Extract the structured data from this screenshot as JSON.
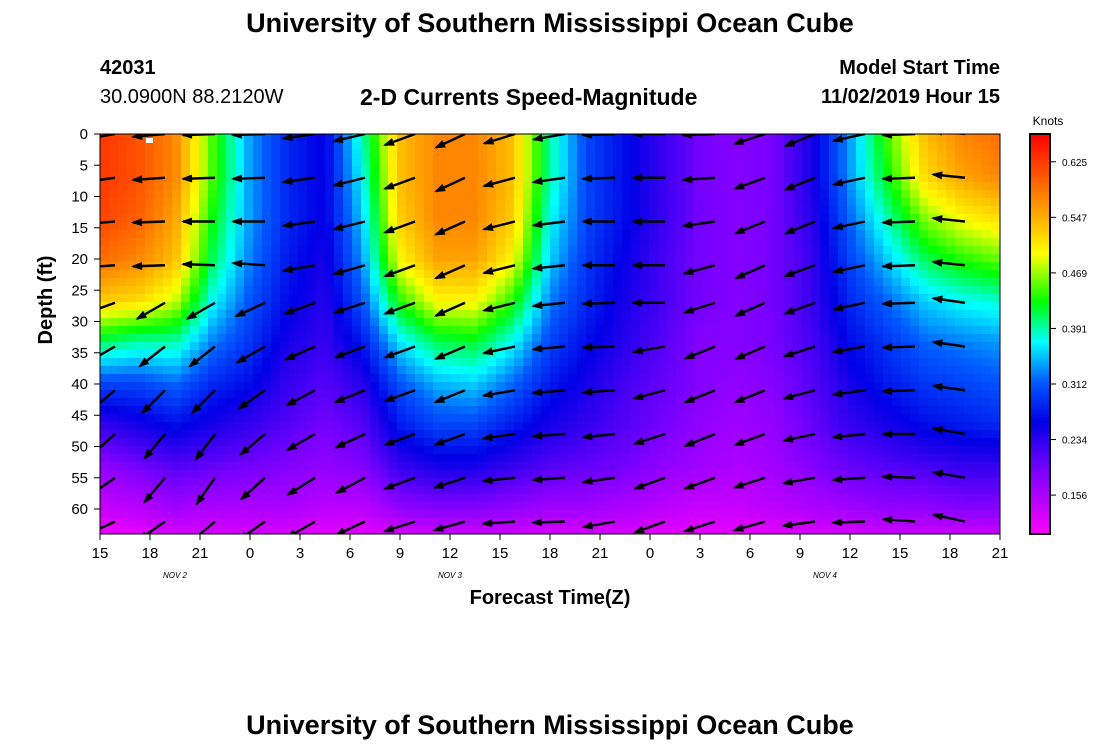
{
  "header": {
    "title": "University of Southern Mississippi Ocean Cube",
    "station_id": "42031",
    "station_coords": "30.0900N 88.2120W",
    "chart_title": "2-D Currents Speed-Magnitude",
    "model_label": "Model Start Time",
    "model_time": "11/02/2019 Hour 15"
  },
  "footer": {
    "title": "University of Southern Mississippi Ocean Cube"
  },
  "chart_data": {
    "type": "heatmap",
    "title": "2-D Currents Speed-Magnitude",
    "xlabel": "Forecast Time(Z)",
    "ylabel": "Depth (ft)",
    "x_tick_labels": [
      "15",
      "18",
      "21",
      "0",
      "3",
      "6",
      "9",
      "12",
      "15",
      "18",
      "21",
      "0",
      "3",
      "6",
      "9",
      "12",
      "15",
      "18",
      "21"
    ],
    "date_labels": [
      {
        "label": "NOV 2",
        "tick_index": 1.5
      },
      {
        "label": "NOV 3",
        "tick_index": 7
      },
      {
        "label": "NOV 4",
        "tick_index": 14.5
      }
    ],
    "y_ticks": [
      0,
      5,
      10,
      15,
      20,
      25,
      30,
      35,
      40,
      45,
      50,
      55,
      60
    ],
    "ylim": [
      0,
      64
    ],
    "colorbar": {
      "label": "Knots",
      "ticks": [
        "0.625",
        "0.547",
        "0.469",
        "0.391",
        "0.312",
        "0.234",
        "0.156"
      ],
      "range": [
        0.08,
        0.7
      ]
    },
    "grid": false,
    "depths": [
      0,
      6.7,
      13.3,
      20,
      26.7,
      33.3,
      40,
      46.7,
      53.3,
      60,
      64
    ],
    "speed_knots": [
      [
        0.66,
        0.64,
        0.6,
        0.46,
        0.34,
        0.28,
        0.25,
        0.4,
        0.56,
        0.6,
        0.6,
        0.56,
        0.4,
        0.3,
        0.26,
        0.22,
        0.18,
        0.17,
        0.18,
        0.24,
        0.34,
        0.46,
        0.56,
        0.6,
        0.62
      ],
      [
        0.66,
        0.64,
        0.6,
        0.46,
        0.34,
        0.28,
        0.25,
        0.38,
        0.56,
        0.6,
        0.6,
        0.56,
        0.4,
        0.3,
        0.26,
        0.22,
        0.18,
        0.17,
        0.18,
        0.24,
        0.34,
        0.44,
        0.54,
        0.58,
        0.6
      ],
      [
        0.65,
        0.63,
        0.58,
        0.44,
        0.34,
        0.28,
        0.25,
        0.36,
        0.55,
        0.6,
        0.6,
        0.55,
        0.38,
        0.3,
        0.26,
        0.22,
        0.18,
        0.17,
        0.18,
        0.23,
        0.32,
        0.4,
        0.48,
        0.52,
        0.54
      ],
      [
        0.62,
        0.6,
        0.56,
        0.42,
        0.33,
        0.27,
        0.24,
        0.34,
        0.52,
        0.58,
        0.58,
        0.52,
        0.36,
        0.29,
        0.25,
        0.21,
        0.18,
        0.17,
        0.18,
        0.22,
        0.3,
        0.36,
        0.42,
        0.45,
        0.47
      ],
      [
        0.55,
        0.54,
        0.5,
        0.38,
        0.31,
        0.26,
        0.23,
        0.31,
        0.45,
        0.52,
        0.52,
        0.45,
        0.33,
        0.28,
        0.24,
        0.21,
        0.18,
        0.17,
        0.18,
        0.22,
        0.28,
        0.32,
        0.36,
        0.38,
        0.39
      ],
      [
        0.42,
        0.4,
        0.4,
        0.33,
        0.29,
        0.24,
        0.22,
        0.27,
        0.37,
        0.42,
        0.43,
        0.38,
        0.3,
        0.26,
        0.23,
        0.2,
        0.17,
        0.17,
        0.18,
        0.21,
        0.26,
        0.29,
        0.32,
        0.33,
        0.34
      ],
      [
        0.3,
        0.3,
        0.32,
        0.28,
        0.26,
        0.22,
        0.2,
        0.23,
        0.31,
        0.35,
        0.36,
        0.32,
        0.27,
        0.24,
        0.21,
        0.19,
        0.17,
        0.16,
        0.17,
        0.2,
        0.24,
        0.27,
        0.29,
        0.3,
        0.31
      ],
      [
        0.22,
        0.24,
        0.26,
        0.24,
        0.22,
        0.2,
        0.18,
        0.2,
        0.27,
        0.3,
        0.3,
        0.27,
        0.24,
        0.22,
        0.2,
        0.18,
        0.16,
        0.15,
        0.16,
        0.19,
        0.22,
        0.24,
        0.26,
        0.27,
        0.28
      ],
      [
        0.16,
        0.18,
        0.2,
        0.19,
        0.18,
        0.17,
        0.16,
        0.17,
        0.22,
        0.24,
        0.24,
        0.22,
        0.2,
        0.19,
        0.18,
        0.16,
        0.15,
        0.14,
        0.15,
        0.17,
        0.19,
        0.2,
        0.21,
        0.22,
        0.22
      ],
      [
        0.12,
        0.13,
        0.15,
        0.14,
        0.14,
        0.14,
        0.13,
        0.13,
        0.16,
        0.17,
        0.17,
        0.16,
        0.15,
        0.15,
        0.14,
        0.13,
        0.12,
        0.12,
        0.13,
        0.14,
        0.15,
        0.16,
        0.16,
        0.17,
        0.17
      ],
      [
        0.09,
        0.1,
        0.11,
        0.11,
        0.11,
        0.11,
        0.1,
        0.1,
        0.11,
        0.12,
        0.12,
        0.12,
        0.11,
        0.11,
        0.11,
        0.1,
        0.1,
        0.1,
        0.1,
        0.11,
        0.11,
        0.12,
        0.12,
        0.12,
        0.12
      ]
    ],
    "vector_time_index": [
      0.3,
      1.3,
      2.3,
      3.3,
      4.3,
      5.3,
      6.3,
      7.3,
      8.3,
      9.3,
      10.3,
      11.3,
      12.3,
      13.3,
      14.3,
      15.3,
      16.3,
      17.3
    ],
    "vector_depths": [
      0,
      7,
      14,
      21,
      27,
      34,
      41,
      48,
      55,
      62
    ],
    "vector_direction_deg": [
      [
        170,
        175,
        178,
        178,
        172,
        167,
        160,
        155,
        163,
        170,
        178,
        180,
        178,
        162,
        158,
        168,
        178,
        186
      ],
      [
        172,
        176,
        178,
        178,
        172,
        166,
        160,
        155,
        165,
        172,
        178,
        180,
        176,
        160,
        158,
        168,
        178,
        186
      ],
      [
        175,
        178,
        180,
        180,
        172,
        166,
        160,
        156,
        166,
        173,
        180,
        180,
        172,
        158,
        158,
        168,
        178,
        186
      ],
      [
        176,
        178,
        182,
        184,
        170,
        164,
        160,
        156,
        166,
        174,
        180,
        180,
        165,
        156,
        160,
        168,
        178,
        186
      ],
      [
        160,
        150,
        150,
        155,
        160,
        162,
        160,
        156,
        166,
        174,
        178,
        180,
        162,
        156,
        160,
        168,
        178,
        188
      ],
      [
        150,
        142,
        142,
        150,
        156,
        160,
        160,
        157,
        168,
        175,
        178,
        170,
        158,
        157,
        162,
        170,
        178,
        188
      ],
      [
        140,
        135,
        135,
        145,
        152,
        158,
        160,
        158,
        170,
        175,
        176,
        165,
        158,
        158,
        165,
        172,
        178,
        188
      ],
      [
        138,
        130,
        127,
        140,
        150,
        155,
        160,
        160,
        172,
        176,
        174,
        162,
        158,
        160,
        168,
        174,
        180,
        190
      ],
      [
        145,
        130,
        125,
        138,
        148,
        152,
        160,
        162,
        174,
        176,
        172,
        160,
        160,
        162,
        170,
        176,
        182,
        190
      ],
      [
        155,
        145,
        140,
        145,
        150,
        155,
        162,
        164,
        176,
        178,
        170,
        160,
        162,
        164,
        172,
        178,
        184,
        192
      ]
    ]
  }
}
